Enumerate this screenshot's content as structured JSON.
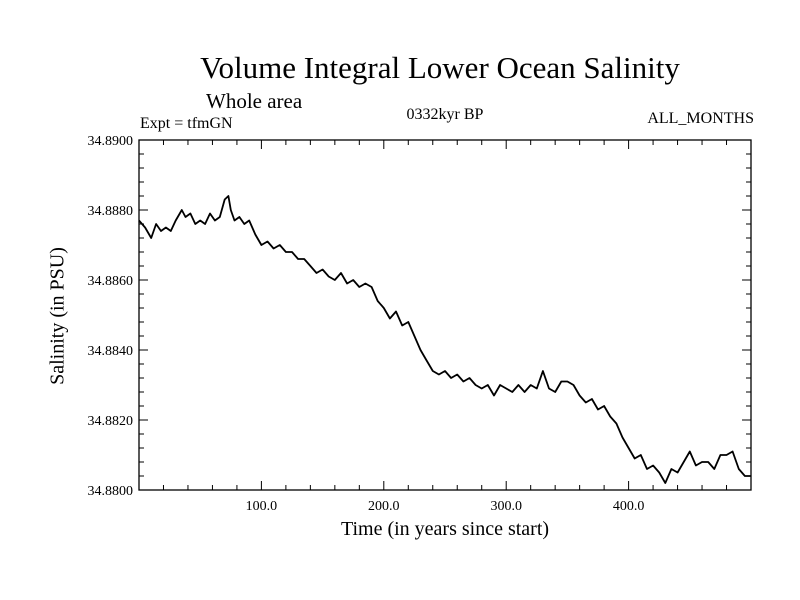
{
  "chart_data": {
    "type": "line",
    "title": "Volume Integral Lower Ocean Salinity",
    "subtitle": "Whole area",
    "header_left": "Expt = tfmGN",
    "header_center": "0332kyr BP",
    "header_right": "ALL_MONTHS",
    "xlabel": "Time (in years since start)",
    "ylabel": "Salinity (in PSU)",
    "xlim": [
      0,
      500
    ],
    "ylim": [
      34.88,
      34.89
    ],
    "xticks": [
      100,
      200,
      300,
      400
    ],
    "xtick_labels": [
      "100.0",
      "200.0",
      "300.0",
      "400.0"
    ],
    "yticks": [
      34.88,
      34.882,
      34.884,
      34.886,
      34.888,
      34.89
    ],
    "ytick_labels": [
      "34.8800",
      "34.8820",
      "34.8840",
      "34.8860",
      "34.8880",
      "34.8900"
    ],
    "grid": false,
    "series": [
      {
        "color": "#000000",
        "x": [
          0,
          5,
          10,
          14,
          18,
          22,
          26,
          30,
          35,
          38,
          42,
          46,
          50,
          54,
          58,
          62,
          66,
          70,
          73,
          75,
          78,
          82,
          86,
          90,
          95,
          100,
          105,
          110,
          115,
          120,
          125,
          130,
          135,
          140,
          145,
          150,
          155,
          160,
          165,
          170,
          175,
          180,
          185,
          190,
          195,
          200,
          205,
          210,
          215,
          220,
          225,
          230,
          235,
          240,
          245,
          250,
          255,
          260,
          265,
          270,
          275,
          280,
          285,
          290,
          295,
          300,
          305,
          310,
          315,
          320,
          325,
          330,
          335,
          340,
          345,
          350,
          355,
          360,
          365,
          370,
          375,
          380,
          385,
          390,
          395,
          400,
          405,
          410,
          415,
          420,
          425,
          430,
          435,
          440,
          445,
          450,
          455,
          460,
          465,
          470,
          475,
          480,
          485,
          490,
          495,
          500
        ],
        "y": [
          34.8877,
          34.8875,
          34.8872,
          34.8876,
          34.8874,
          34.8875,
          34.8874,
          34.8877,
          34.888,
          34.8878,
          34.8879,
          34.8876,
          34.8877,
          34.8876,
          34.8879,
          34.8877,
          34.8878,
          34.8883,
          34.8884,
          34.888,
          34.8877,
          34.8878,
          34.8876,
          34.8877,
          34.8873,
          34.887,
          34.8871,
          34.8869,
          34.887,
          34.8868,
          34.8868,
          34.8866,
          34.8866,
          34.8864,
          34.8862,
          34.8863,
          34.8861,
          34.886,
          34.8862,
          34.8859,
          34.886,
          34.8858,
          34.8859,
          34.8858,
          34.8854,
          34.8852,
          34.8849,
          34.8851,
          34.8847,
          34.8848,
          34.8844,
          34.884,
          34.8837,
          34.8834,
          34.8833,
          34.8834,
          34.8832,
          34.8833,
          34.8831,
          34.8832,
          34.883,
          34.8829,
          34.883,
          34.8827,
          34.883,
          34.8829,
          34.8828,
          34.883,
          34.8828,
          34.883,
          34.8829,
          34.8834,
          34.8829,
          34.8828,
          34.8831,
          34.8831,
          34.883,
          34.8827,
          34.8825,
          34.8826,
          34.8823,
          34.8824,
          34.8821,
          34.8819,
          34.8815,
          34.8812,
          34.8809,
          34.881,
          34.8806,
          34.8807,
          34.8805,
          34.8802,
          34.8806,
          34.8805,
          34.8808,
          34.8811,
          34.8807,
          34.8808,
          34.8808,
          34.8806,
          34.881,
          34.881,
          34.8811,
          34.8806,
          34.8804,
          34.8804
        ]
      }
    ]
  }
}
